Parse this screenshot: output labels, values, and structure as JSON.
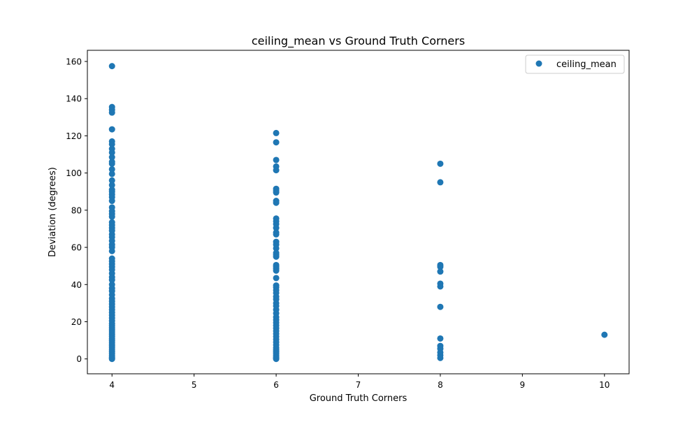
{
  "chart_data": {
    "type": "scatter",
    "title": "ceiling_mean vs Ground Truth Corners",
    "xlabel": "Ground Truth Corners",
    "ylabel": "Deviation (degrees)",
    "xlim": [
      3.7,
      10.3
    ],
    "ylim": [
      -8,
      166
    ],
    "xticks": [
      4,
      5,
      6,
      7,
      8,
      9,
      10
    ],
    "yticks": [
      0,
      20,
      40,
      60,
      80,
      100,
      120,
      140,
      160
    ],
    "grid": false,
    "legend_position": "upper right",
    "series": [
      {
        "name": "ceiling_mean",
        "color": "#1f77b4",
        "marker": "circle",
        "points": [
          [
            4,
            157.5
          ],
          [
            4,
            135.5
          ],
          [
            4,
            134.0
          ],
          [
            4,
            132.5
          ],
          [
            4,
            123.5
          ],
          [
            4,
            117.0
          ],
          [
            4,
            115.5
          ],
          [
            4,
            113.0
          ],
          [
            4,
            111.0
          ],
          [
            4,
            108.5
          ],
          [
            4,
            106.0
          ],
          [
            4,
            105.0
          ],
          [
            4,
            102.0
          ],
          [
            4,
            99.5
          ],
          [
            4,
            96.0
          ],
          [
            4,
            93.5
          ],
          [
            4,
            91.0
          ],
          [
            4,
            90.0
          ],
          [
            4,
            88.5
          ],
          [
            4,
            87.0
          ],
          [
            4,
            85.0
          ],
          [
            4,
            81.5
          ],
          [
            4,
            79.5
          ],
          [
            4,
            78.0
          ],
          [
            4,
            76.5
          ],
          [
            4,
            73.5
          ],
          [
            4,
            72.0
          ],
          [
            4,
            70.5
          ],
          [
            4,
            69.0
          ],
          [
            4,
            67.0
          ],
          [
            4,
            65.5
          ],
          [
            4,
            63.5
          ],
          [
            4,
            61.5
          ],
          [
            4,
            60.0
          ],
          [
            4,
            58.0
          ],
          [
            4,
            54.0
          ],
          [
            4,
            52.5
          ],
          [
            4,
            51.0
          ],
          [
            4,
            49.5
          ],
          [
            4,
            48.0
          ],
          [
            4,
            46.0
          ],
          [
            4,
            44.0
          ],
          [
            4,
            42.5
          ],
          [
            4,
            40.0
          ],
          [
            4,
            38.0
          ],
          [
            4,
            36.5
          ],
          [
            4,
            34.5
          ],
          [
            4,
            32.5
          ],
          [
            4,
            31.0
          ],
          [
            4,
            29.5
          ],
          [
            4,
            28.0
          ],
          [
            4,
            26.5
          ],
          [
            4,
            25.0
          ],
          [
            4,
            23.5
          ],
          [
            4,
            22.0
          ],
          [
            4,
            20.5
          ],
          [
            4,
            19.0
          ],
          [
            4,
            18.0
          ],
          [
            4,
            17.0
          ],
          [
            4,
            16.0
          ],
          [
            4,
            15.0
          ],
          [
            4,
            14.0
          ],
          [
            4,
            13.0
          ],
          [
            4,
            12.0
          ],
          [
            4,
            11.0
          ],
          [
            4,
            10.0
          ],
          [
            4,
            9.0
          ],
          [
            4,
            8.0
          ],
          [
            4,
            7.0
          ],
          [
            4,
            6.0
          ],
          [
            4,
            5.0
          ],
          [
            4,
            4.0
          ],
          [
            4,
            3.0
          ],
          [
            4,
            2.0
          ],
          [
            4,
            1.0
          ],
          [
            4,
            0.5
          ],
          [
            4,
            0.0
          ],
          [
            6,
            121.5
          ],
          [
            6,
            116.5
          ],
          [
            6,
            107.0
          ],
          [
            6,
            103.5
          ],
          [
            6,
            101.5
          ],
          [
            6,
            91.5
          ],
          [
            6,
            90.5
          ],
          [
            6,
            89.5
          ],
          [
            6,
            85.0
          ],
          [
            6,
            84.0
          ],
          [
            6,
            75.5
          ],
          [
            6,
            74.0
          ],
          [
            6,
            72.5
          ],
          [
            6,
            70.5
          ],
          [
            6,
            68.0
          ],
          [
            6,
            67.0
          ],
          [
            6,
            63.0
          ],
          [
            6,
            61.5
          ],
          [
            6,
            59.5
          ],
          [
            6,
            57.0
          ],
          [
            6,
            56.0
          ],
          [
            6,
            55.0
          ],
          [
            6,
            50.5
          ],
          [
            6,
            49.5
          ],
          [
            6,
            48.5
          ],
          [
            6,
            47.5
          ],
          [
            6,
            43.5
          ],
          [
            6,
            39.5
          ],
          [
            6,
            38.5
          ],
          [
            6,
            37.0
          ],
          [
            6,
            35.5
          ],
          [
            6,
            33.5
          ],
          [
            6,
            32.0
          ],
          [
            6,
            30.0
          ],
          [
            6,
            28.5
          ],
          [
            6,
            26.5
          ],
          [
            6,
            24.5
          ],
          [
            6,
            22.5
          ],
          [
            6,
            21.0
          ],
          [
            6,
            19.5
          ],
          [
            6,
            18.0
          ],
          [
            6,
            16.5
          ],
          [
            6,
            15.0
          ],
          [
            6,
            13.5
          ],
          [
            6,
            12.0
          ],
          [
            6,
            10.5
          ],
          [
            6,
            9.0
          ],
          [
            6,
            7.5
          ],
          [
            6,
            6.0
          ],
          [
            6,
            5.0
          ],
          [
            6,
            4.0
          ],
          [
            6,
            3.0
          ],
          [
            6,
            2.0
          ],
          [
            6,
            1.0
          ],
          [
            6,
            0.5
          ],
          [
            6,
            0.0
          ],
          [
            8,
            105.0
          ],
          [
            8,
            95.0
          ],
          [
            8,
            50.5
          ],
          [
            8,
            49.5
          ],
          [
            8,
            47.0
          ],
          [
            8,
            40.5
          ],
          [
            8,
            39.0
          ],
          [
            8,
            28.0
          ],
          [
            8,
            11.0
          ],
          [
            8,
            7.0
          ],
          [
            8,
            5.5
          ],
          [
            8,
            3.5
          ],
          [
            8,
            2.0
          ],
          [
            8,
            0.5
          ],
          [
            10,
            13.0
          ]
        ]
      }
    ]
  }
}
